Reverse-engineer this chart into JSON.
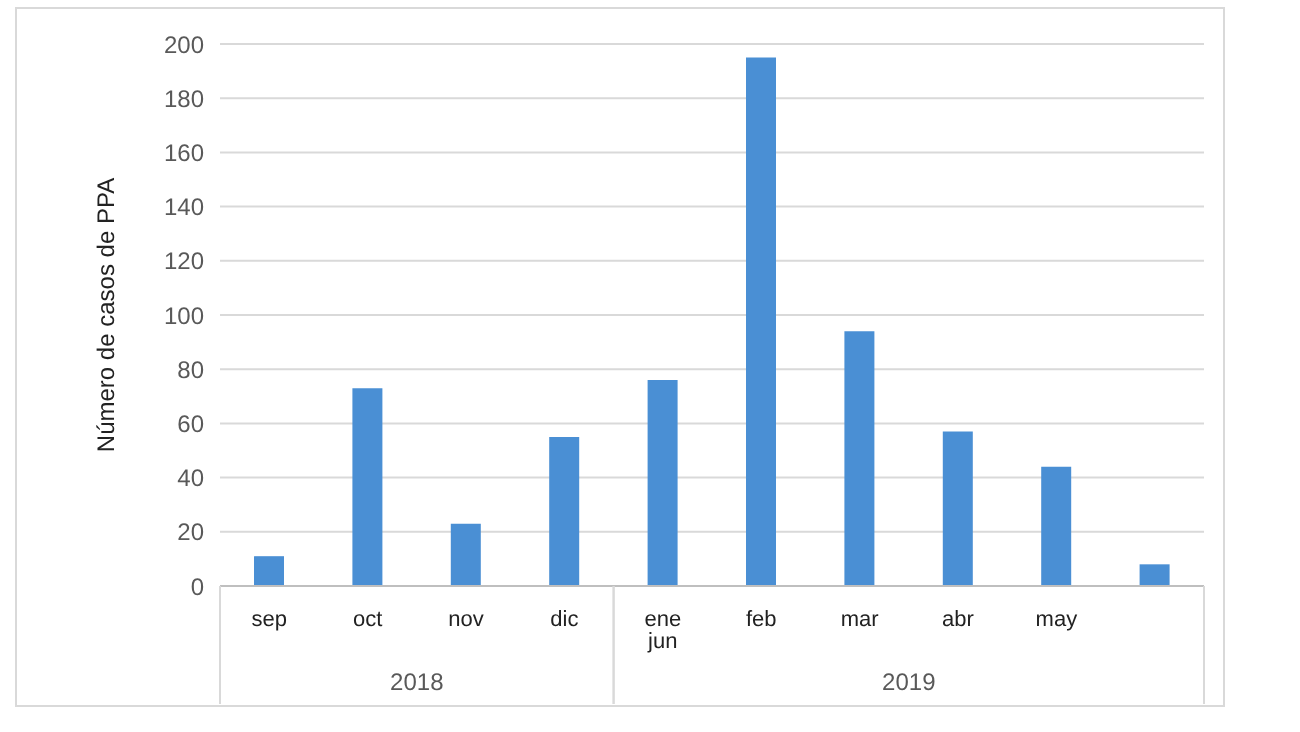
{
  "chart_data": {
    "type": "bar",
    "ylabel": "Número de casos de PPA",
    "categories": [
      "sep",
      "oct",
      "nov",
      "dic",
      "ene\njun",
      "feb",
      "mar",
      "abr",
      "may",
      null
    ],
    "values": [
      11,
      73,
      23,
      55,
      76,
      195,
      94,
      57,
      44,
      8
    ],
    "color": "#4a8fd4",
    "ylim": [
      0,
      200
    ],
    "yticks": [
      0,
      20,
      40,
      60,
      80,
      100,
      120,
      140,
      160,
      180,
      200
    ],
    "grid": "y",
    "annotations": [
      "2018",
      "2019"
    ]
  }
}
